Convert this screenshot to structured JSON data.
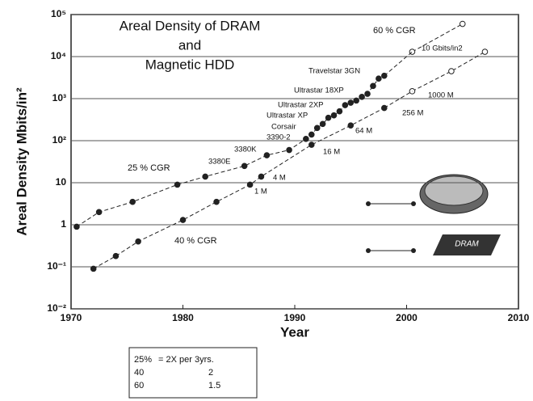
{
  "chart_data": {
    "type": "scatter",
    "title_lines": [
      "Areal Density of DRAM",
      "and",
      "Magnetic HDD"
    ],
    "x_label": "Year",
    "y_label": "Areal Density Mbits/in²",
    "log_y": true,
    "grid": true,
    "xlim": [
      1970,
      2010
    ],
    "xticks": [
      1970,
      1980,
      1990,
      2000,
      2010
    ],
    "ylim": [
      0.01,
      100000
    ],
    "yticks": [
      {
        "value": 100000,
        "label": "10⁵"
      },
      {
        "value": 10000,
        "label": "10⁴"
      },
      {
        "value": 1000,
        "label": "10³"
      },
      {
        "value": 100,
        "label": "10²"
      },
      10,
      1,
      {
        "value": 0.1,
        "label": "10⁻¹"
      },
      {
        "value": 0.01,
        "label": "10⁻²"
      }
    ],
    "series": [
      {
        "marker": "filled",
        "color": "#222",
        "x": [
          1970.5,
          1972.5,
          1975.5,
          1979.5,
          1982,
          1985.5,
          1987.5,
          1989.5,
          1991,
          1991.5,
          1992,
          1992.5,
          1993,
          1993.5,
          1994,
          1994.5,
          1995,
          1995.5,
          1996,
          1996.5,
          1997,
          1997.5,
          1998
        ],
        "values": [
          0.9,
          2,
          3.5,
          9,
          14,
          25,
          45,
          60,
          110,
          140,
          200,
          250,
          350,
          400,
          500,
          700,
          800,
          900,
          1100,
          1300,
          2000,
          3000,
          3500
        ]
      },
      {
        "marker": "open",
        "color": "#222",
        "x": [
          2000.5,
          2005
        ],
        "values": [
          13000,
          60000
        ]
      },
      {
        "marker": "filled",
        "color": "#222",
        "x": [
          1972,
          1974,
          1976,
          1980,
          1983,
          1986,
          1987,
          1991.5,
          1995,
          1998
        ],
        "values": [
          0.09,
          0.18,
          0.4,
          1.3,
          3.5,
          9,
          14,
          80,
          230,
          600
        ]
      },
      {
        "marker": "open",
        "color": "#222",
        "x": [
          2000.5,
          2004,
          2007
        ],
        "values": [
          1500,
          4500,
          13000
        ]
      }
    ],
    "annotations": [
      "60 % CGR",
      "10 Gbits/in2",
      "Travelstar 3GN",
      "Ultrastar 18XP",
      "Ultrastar 2XP",
      "Ultrastar XP",
      "Corsair",
      "3390-2",
      "3380K",
      "3380E",
      "25 % CGR",
      "40 % CGR",
      "1 M",
      "4 M",
      "16 M",
      "64 M",
      "256 M",
      "1000 M"
    ],
    "chip_label": "DRAM",
    "note_table": [
      [
        "25%",
        "= 2X per 3yrs."
      ],
      [
        "40",
        "2"
      ],
      [
        "60",
        "1.5"
      ]
    ]
  }
}
